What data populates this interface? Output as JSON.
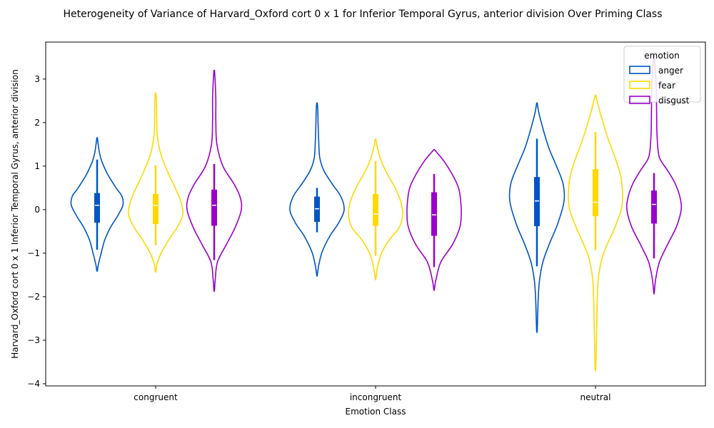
{
  "chart_data": {
    "type": "violin",
    "title": "Heterogeneity of Variance of Harvard_Oxford cort 0 x 1 for Inferior Temporal Gyrus, anterior division Over Priming Class",
    "xlabel": "Emotion Class",
    "ylabel": "Harvard_Oxford cort 0 x 1 Inferior Temporal Gyrus, anterior division",
    "categories": [
      "congruent",
      "incongruent",
      "neutral"
    ],
    "ylim": [
      -4.05,
      3.85
    ],
    "yticks": [
      -4,
      -3,
      -2,
      -1,
      0,
      1,
      2,
      3
    ],
    "legend": {
      "title": "emotion",
      "position": "top-right"
    },
    "series": [
      {
        "name": "anger",
        "color": "#0055c4"
      },
      {
        "name": "fear",
        "color": "#ffd800"
      },
      {
        "name": "disgust",
        "color": "#9900cc"
      }
    ],
    "violins": [
      {
        "category": "congruent",
        "series": "anger",
        "min": -1.4,
        "max": 1.65,
        "q1": -0.3,
        "median": 0.1,
        "q3": 0.38,
        "whisker_low": -0.92,
        "whisker_high": 1.15,
        "profile": [
          [
            -1.4,
            0.01
          ],
          [
            -1.25,
            0.05
          ],
          [
            -1.0,
            0.15
          ],
          [
            -0.7,
            0.28
          ],
          [
            -0.4,
            0.5
          ],
          [
            -0.15,
            0.75
          ],
          [
            0.1,
            0.95
          ],
          [
            0.3,
            0.92
          ],
          [
            0.5,
            0.7
          ],
          [
            0.8,
            0.4
          ],
          [
            1.1,
            0.18
          ],
          [
            1.3,
            0.09
          ],
          [
            1.5,
            0.04
          ],
          [
            1.65,
            0.01
          ]
        ]
      },
      {
        "category": "congruent",
        "series": "fear",
        "min": -1.42,
        "max": 2.68,
        "q1": -0.33,
        "median": 0.1,
        "q3": 0.36,
        "whisker_low": -0.82,
        "whisker_high": 1.02,
        "profile": [
          [
            -1.42,
            0.01
          ],
          [
            -1.25,
            0.05
          ],
          [
            -1.0,
            0.2
          ],
          [
            -0.7,
            0.48
          ],
          [
            -0.4,
            0.8
          ],
          [
            -0.1,
            1.0
          ],
          [
            0.2,
            0.92
          ],
          [
            0.5,
            0.72
          ],
          [
            0.9,
            0.42
          ],
          [
            1.3,
            0.18
          ],
          [
            1.7,
            0.06
          ],
          [
            2.1,
            0.04
          ],
          [
            2.5,
            0.03
          ],
          [
            2.68,
            0.01
          ]
        ]
      },
      {
        "category": "congruent",
        "series": "disgust",
        "min": -1.85,
        "max": 3.2,
        "q1": -0.37,
        "median": 0.1,
        "q3": 0.46,
        "whisker_low": -1.16,
        "whisker_high": 1.05,
        "profile": [
          [
            -1.85,
            0.01
          ],
          [
            -1.6,
            0.04
          ],
          [
            -1.2,
            0.12
          ],
          [
            -0.8,
            0.45
          ],
          [
            -0.4,
            0.78
          ],
          [
            0.0,
            1.0
          ],
          [
            0.3,
            0.95
          ],
          [
            0.6,
            0.72
          ],
          [
            1.0,
            0.32
          ],
          [
            1.5,
            0.1
          ],
          [
            2.0,
            0.06
          ],
          [
            2.5,
            0.06
          ],
          [
            2.9,
            0.04
          ],
          [
            3.2,
            0.01
          ]
        ]
      },
      {
        "category": "incongruent",
        "series": "anger",
        "min": -1.5,
        "max": 2.45,
        "q1": -0.28,
        "median": 0.02,
        "q3": 0.3,
        "whisker_low": -0.52,
        "whisker_high": 0.5,
        "profile": [
          [
            -1.5,
            0.01
          ],
          [
            -1.25,
            0.07
          ],
          [
            -0.95,
            0.2
          ],
          [
            -0.6,
            0.48
          ],
          [
            -0.3,
            0.8
          ],
          [
            0.0,
            1.0
          ],
          [
            0.3,
            0.88
          ],
          [
            0.6,
            0.55
          ],
          [
            0.9,
            0.25
          ],
          [
            1.2,
            0.1
          ],
          [
            1.6,
            0.06
          ],
          [
            2.0,
            0.04
          ],
          [
            2.3,
            0.03
          ],
          [
            2.45,
            0.01
          ]
        ]
      },
      {
        "category": "incongruent",
        "series": "fear",
        "min": -1.58,
        "max": 1.62,
        "q1": -0.37,
        "median": -0.1,
        "q3": 0.36,
        "whisker_low": -1.06,
        "whisker_high": 1.12,
        "profile": [
          [
            -1.58,
            0.01
          ],
          [
            -1.3,
            0.08
          ],
          [
            -1.0,
            0.22
          ],
          [
            -0.7,
            0.5
          ],
          [
            -0.4,
            0.88
          ],
          [
            -0.1,
            1.0
          ],
          [
            0.2,
            0.92
          ],
          [
            0.5,
            0.72
          ],
          [
            0.8,
            0.45
          ],
          [
            1.1,
            0.22
          ],
          [
            1.4,
            0.08
          ],
          [
            1.62,
            0.01
          ]
        ]
      },
      {
        "category": "incongruent",
        "series": "disgust",
        "min": -1.83,
        "max": 1.38,
        "q1": -0.6,
        "median": -0.12,
        "q3": 0.4,
        "whisker_low": -1.32,
        "whisker_high": 0.82,
        "profile": [
          [
            -1.83,
            0.01
          ],
          [
            -1.6,
            0.07
          ],
          [
            -1.2,
            0.25
          ],
          [
            -0.8,
            0.68
          ],
          [
            -0.4,
            0.95
          ],
          [
            -0.1,
            1.0
          ],
          [
            0.2,
            0.98
          ],
          [
            0.5,
            0.9
          ],
          [
            0.8,
            0.68
          ],
          [
            1.1,
            0.38
          ],
          [
            1.3,
            0.12
          ],
          [
            1.38,
            0.01
          ]
        ]
      },
      {
        "category": "neutral",
        "series": "anger",
        "min": -2.78,
        "max": 2.45,
        "q1": -0.38,
        "median": 0.2,
        "q3": 0.75,
        "whisker_low": -1.3,
        "whisker_high": 1.63,
        "profile": [
          [
            -2.78,
            0.01
          ],
          [
            -2.4,
            0.03
          ],
          [
            -2.0,
            0.05
          ],
          [
            -1.6,
            0.1
          ],
          [
            -1.2,
            0.22
          ],
          [
            -0.8,
            0.45
          ],
          [
            -0.3,
            0.78
          ],
          [
            0.2,
            1.0
          ],
          [
            0.6,
            0.96
          ],
          [
            1.0,
            0.72
          ],
          [
            1.4,
            0.45
          ],
          [
            1.8,
            0.25
          ],
          [
            2.2,
            0.08
          ],
          [
            2.45,
            0.01
          ]
        ]
      },
      {
        "category": "neutral",
        "series": "fear",
        "min": -3.65,
        "max": 2.63,
        "q1": -0.15,
        "median": 0.17,
        "q3": 0.93,
        "whisker_low": -0.93,
        "whisker_high": 1.78,
        "profile": [
          [
            -3.65,
            0.01
          ],
          [
            -3.2,
            0.03
          ],
          [
            -2.6,
            0.05
          ],
          [
            -2.0,
            0.07
          ],
          [
            -1.5,
            0.12
          ],
          [
            -1.0,
            0.3
          ],
          [
            -0.5,
            0.65
          ],
          [
            0.0,
            0.95
          ],
          [
            0.4,
            1.0
          ],
          [
            0.8,
            0.92
          ],
          [
            1.2,
            0.72
          ],
          [
            1.6,
            0.48
          ],
          [
            2.0,
            0.28
          ],
          [
            2.3,
            0.14
          ],
          [
            2.63,
            0.01
          ]
        ]
      },
      {
        "category": "neutral",
        "series": "disgust",
        "min": -1.9,
        "max": 3.55,
        "q1": -0.32,
        "median": 0.12,
        "q3": 0.44,
        "whisker_low": -1.12,
        "whisker_high": 0.84,
        "profile": [
          [
            -1.9,
            0.01
          ],
          [
            -1.6,
            0.06
          ],
          [
            -1.2,
            0.2
          ],
          [
            -0.8,
            0.5
          ],
          [
            -0.4,
            0.82
          ],
          [
            0.0,
            1.0
          ],
          [
            0.3,
            0.95
          ],
          [
            0.6,
            0.78
          ],
          [
            0.9,
            0.5
          ],
          [
            1.2,
            0.2
          ],
          [
            1.6,
            0.12
          ],
          [
            2.0,
            0.1
          ],
          [
            2.5,
            0.09
          ],
          [
            3.0,
            0.07
          ],
          [
            3.55,
            0.01
          ]
        ]
      }
    ]
  }
}
